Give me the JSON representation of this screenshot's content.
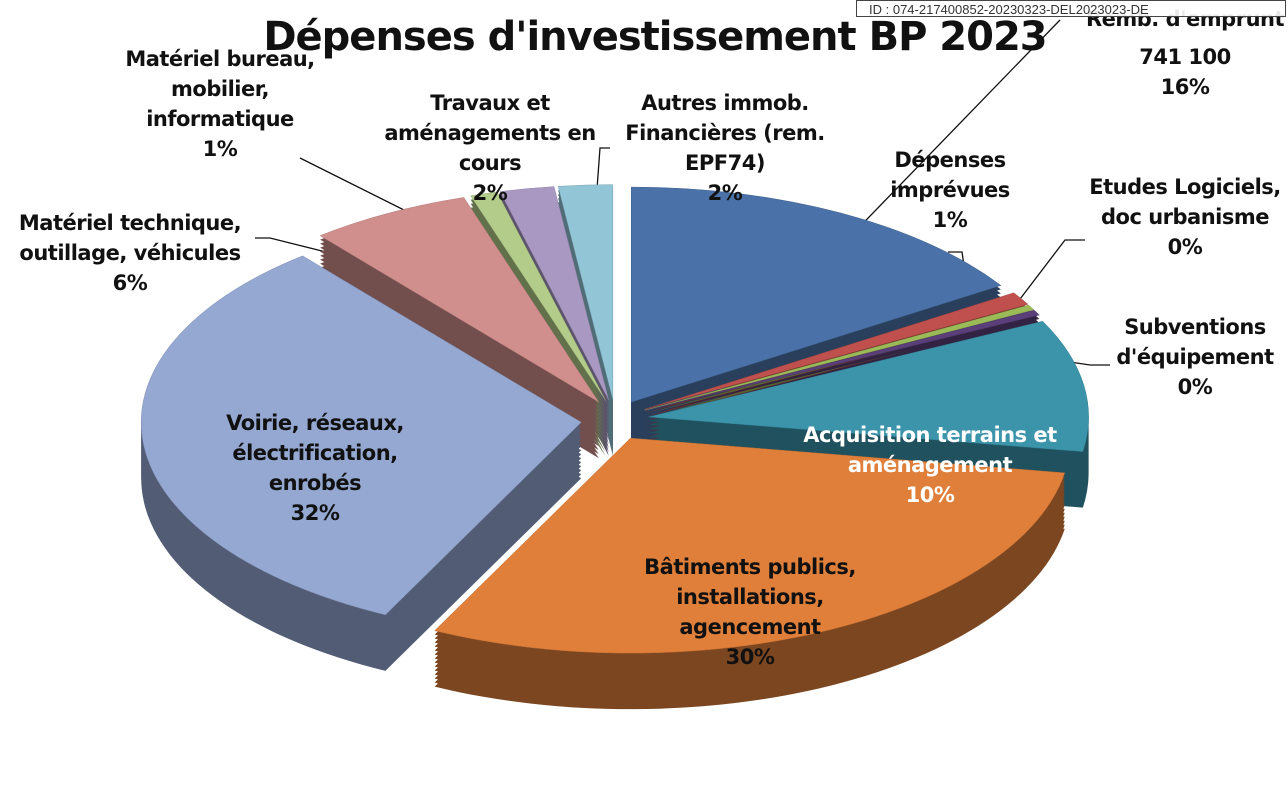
{
  "chart_data": {
    "type": "pie",
    "title": "Dépenses d'investissement  BP 2023",
    "stamp": "ID : 074-217400852-20230323-DEL2023023-DE",
    "categories": [
      "Remb. d'emprunt",
      "Dépenses imprévues",
      "Etudes Logiciels, doc urbanisme",
      "Subventions d'équipement",
      "Acquisition terrains et aménagement",
      "Bâtiments publics, installations, agencement",
      "Voirie, réseaux, électrification, enrobés",
      "Matériel technique, outillage, véhicules",
      "Matériel bureau, mobilier, informatique",
      "Travaux et aménagements en cours",
      "Autres immob. Financières (rem. EPF74)"
    ],
    "values": [
      16,
      1,
      0.4,
      0.4,
      10,
      30,
      32,
      6,
      1,
      2,
      2
    ],
    "value_labels": [
      "16%",
      "1%",
      "0%",
      "0%",
      "10%",
      "30%",
      "32%",
      "6%",
      "1%",
      "2%",
      "2%"
    ],
    "annotations": [
      "741 100"
    ],
    "colors": [
      "#4a72a8",
      "#c0504d",
      "#9bbb59",
      "#5a3f7a",
      "#3b94aa",
      "#e07f3a",
      "#95a8d2",
      "#d08e8c",
      "#b3cc8a",
      "#a898c2",
      "#92c5d6"
    ]
  }
}
